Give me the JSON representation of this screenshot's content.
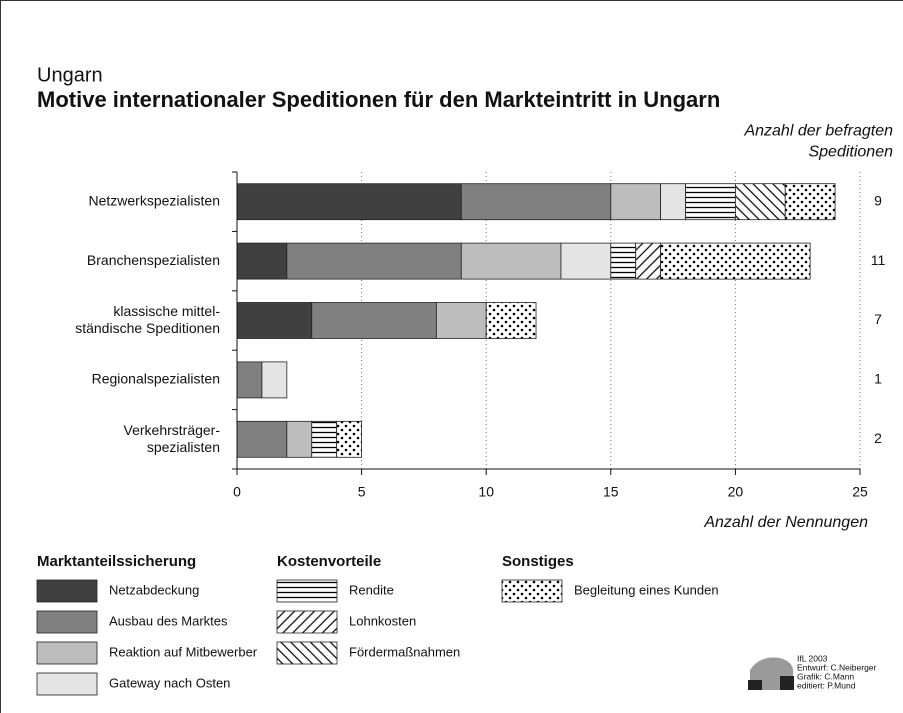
{
  "chart_data": {
    "type": "bar",
    "orientation": "horizontal",
    "stacked": true,
    "supertitle": "Ungarn",
    "title": "Motive internationaler Speditionen für den Markteintritt in Ungarn",
    "xlabel": "Anzahl der Nennungen",
    "categories": [
      "Netzwerkspezialisten",
      "Branchenspezialisten",
      "klassische mittel-\nständische Speditionen",
      "Regionalspezialisten",
      "Verkehrsträger-\nspezialisten"
    ],
    "xlim": [
      0,
      25
    ],
    "xticks": [
      0,
      5,
      10,
      15,
      20,
      25
    ],
    "grid": true,
    "respondents": {
      "label": "Anzahl der befragten\nSpeditionen",
      "values": [
        9,
        11,
        7,
        1,
        2
      ]
    },
    "series": [
      {
        "name": "Netzabdeckung",
        "group": "Marktanteilssicherung",
        "color": "#404040",
        "pattern": "solid",
        "values": [
          9,
          2,
          3,
          0,
          0
        ]
      },
      {
        "name": "Ausbau des Marktes",
        "group": "Marktanteilssicherung",
        "color": "#808080",
        "pattern": "solid",
        "values": [
          6,
          7,
          5,
          1,
          2
        ]
      },
      {
        "name": "Reaktion auf Mitbewerber",
        "group": "Marktanteilssicherung",
        "color": "#bdbdbd",
        "pattern": "solid",
        "values": [
          2,
          4,
          2,
          0,
          1
        ]
      },
      {
        "name": "Gateway nach Osten",
        "group": "Marktanteilssicherung",
        "color": "#e4e4e4",
        "pattern": "solid",
        "values": [
          1,
          2,
          0,
          1,
          0
        ]
      },
      {
        "name": "Rendite",
        "group": "Kostenvorteile",
        "color": "#000000",
        "pattern": "hlines",
        "values": [
          2,
          1,
          0,
          0,
          1
        ]
      },
      {
        "name": "Lohnkosten",
        "group": "Kostenvorteile",
        "color": "#000000",
        "pattern": "diag-up",
        "values": [
          0,
          1,
          0,
          0,
          0
        ]
      },
      {
        "name": "Fördermaßnahmen",
        "group": "Kostenvorteile",
        "color": "#000000",
        "pattern": "diag-down",
        "values": [
          2,
          0,
          0,
          0,
          0
        ]
      },
      {
        "name": "Begleitung eines Kunden",
        "group": "Sonstiges",
        "color": "#000000",
        "pattern": "dots",
        "values": [
          2,
          6,
          2,
          0,
          1
        ]
      }
    ],
    "credits": [
      "IfL 2003",
      "Entwurf: C.Neiberger",
      "Grafik: C.Mann",
      "editiert: P.Mund"
    ]
  }
}
